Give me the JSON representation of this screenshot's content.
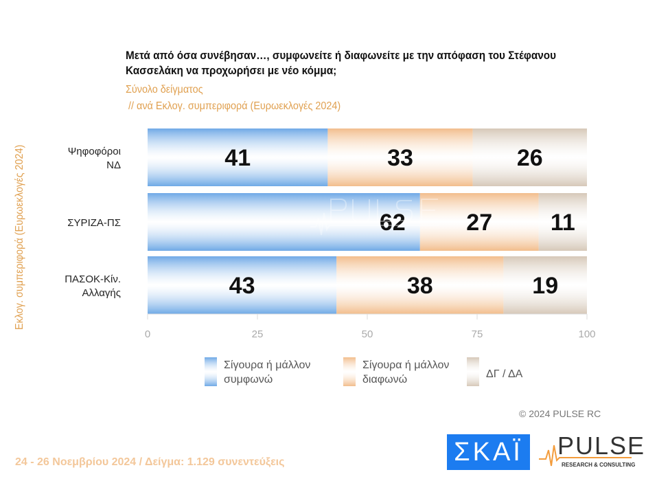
{
  "chart_data": {
    "type": "bar",
    "orientation": "horizontal",
    "stacked": true,
    "title": "Μετά από όσα συνέβησαν…, συμφωνείτε ή διαφωνείτε με την απόφαση του Στέφανου Κασσελάκη να προχωρήσει με νέο κόμμα;",
    "subtitle1": "Σύνολο δείγματος",
    "subtitle2": " // ανά Εκλογ. συμπεριφορά (Ευρωεκλογές 2024)",
    "ylabel": "Εκλογ. συμπεριφορά (Ευρωεκλογές 2024)",
    "categories": [
      [
        "Ψηφοφόροι",
        "ΝΔ"
      ],
      [
        "ΣΥΡΙΖΑ-ΠΣ"
      ],
      [
        "ΠΑΣΟΚ-Κίν.",
        "Αλλαγής"
      ]
    ],
    "series": [
      {
        "name": "Σίγουρα ή μάλλον συμφωνώ",
        "name_lines": [
          "Σίγουρα ή μάλλον",
          "συμφωνώ"
        ],
        "color": "#6fa9e6",
        "values": [
          41,
          62,
          43
        ]
      },
      {
        "name": "Σίγουρα ή μάλλον διαφωνώ",
        "name_lines": [
          "Σίγουρα ή μάλλον",
          "διαφωνώ"
        ],
        "color": "#f2bd8c",
        "values": [
          33,
          27,
          38
        ]
      },
      {
        "name": "ΔΓ / ΔΑ",
        "name_lines": [
          "ΔΓ / ΔΑ"
        ],
        "color": "#d6c8b8",
        "values": [
          26,
          11,
          19
        ]
      }
    ],
    "xlim": [
      0,
      100
    ],
    "xticks": [
      "0",
      "25",
      "50",
      "75",
      "100"
    ],
    "grid": false,
    "legend": "bottom"
  },
  "footer": {
    "left": "24 - 26 Νοεμβρίου 2024  /  Δείγμα:  1.129 συνεντεύξεις",
    "copyright": "©  2024  PULSE RC"
  },
  "logos": {
    "skai": "ΣΚΑΪ",
    "pulse": "PULSE",
    "pulse_sub": "RESEARCH & CONSULTING",
    "watermark": "PULSE"
  }
}
